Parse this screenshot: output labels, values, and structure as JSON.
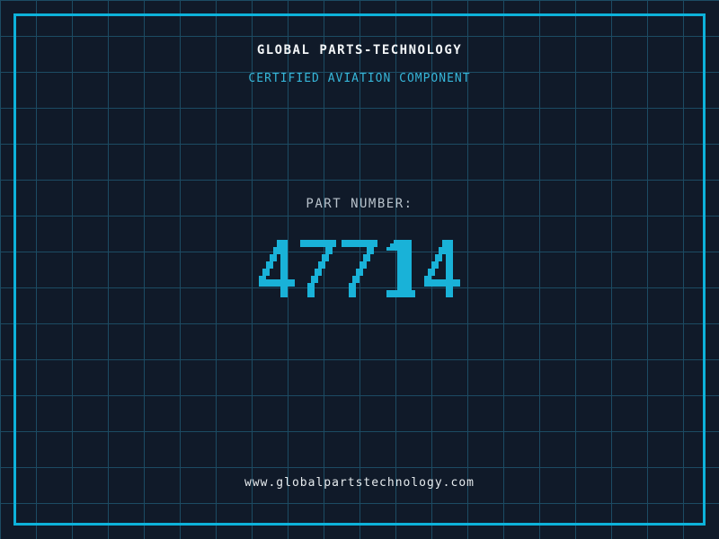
{
  "header": {
    "title": "GLOBAL PARTS-TECHNOLOGY",
    "subtitle": "CERTIFIED AVIATION COMPONENT"
  },
  "part": {
    "label": "PART NUMBER:",
    "number": "47714"
  },
  "footer": {
    "url": "www.globalpartstechnology.com"
  },
  "colors": {
    "background": "#101a29",
    "grid_line": "#1c4b63",
    "frame": "#0db2da",
    "title_text": "#f2f5f7",
    "subtitle_text": "#36b6d9",
    "part_label_text": "#b8c2cb",
    "number": "#19b2d8",
    "url_text": "#e6ebee"
  }
}
